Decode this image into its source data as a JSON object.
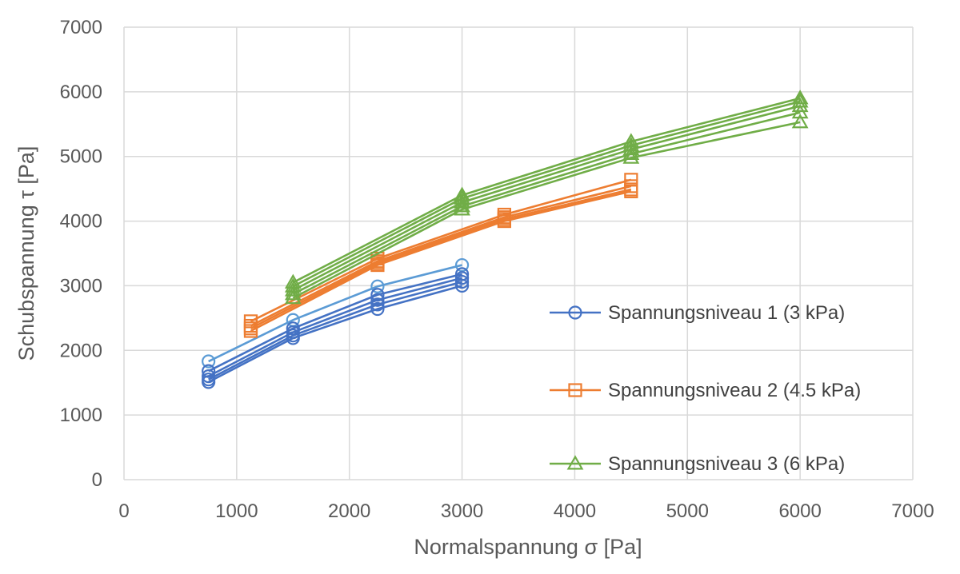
{
  "chart_data": {
    "type": "line",
    "xlabel": "Normalspannung σ [Pa]",
    "ylabel": "Schubspannung τ [Pa]",
    "xlim": [
      0,
      7000
    ],
    "ylim": [
      0,
      7000
    ],
    "x_ticks": [
      0,
      1000,
      2000,
      3000,
      4000,
      5000,
      6000,
      7000
    ],
    "y_ticks": [
      0,
      1000,
      2000,
      3000,
      4000,
      5000,
      6000,
      7000
    ],
    "grid": true,
    "legend_position": "right",
    "series": [
      {
        "group": "Spannungsniveau 1 (3 kPa)",
        "legend": "Spannungsniveau 1 (3 kPa)",
        "marker": "circle",
        "color": "#4472c4",
        "lines": [
          {
            "x": [
              750,
              1500,
              2250,
              3000
            ],
            "y": [
              1830,
              2470,
              2990,
              3320
            ],
            "color": "#5b9bd5"
          },
          {
            "x": [
              750,
              1500,
              2250,
              3000
            ],
            "y": [
              1680,
              2340,
              2860,
              3180
            ],
            "color": "#4472c4"
          },
          {
            "x": [
              750,
              1500,
              2250,
              3000
            ],
            "y": [
              1600,
              2280,
              2780,
              3120
            ],
            "color": "#4472c4"
          },
          {
            "x": [
              750,
              1500,
              2250,
              3000
            ],
            "y": [
              1550,
              2230,
              2710,
              3060
            ],
            "color": "#4472c4"
          },
          {
            "x": [
              750,
              1500,
              2250,
              3000
            ],
            "y": [
              1510,
              2190,
              2640,
              3000
            ],
            "color": "#4472c4"
          }
        ]
      },
      {
        "group": "Spannungsniveau 2 (4.5 kPa)",
        "legend": "Spannungsniveau 2 (4.5 kPa)",
        "marker": "square",
        "color": "#ed7d31",
        "lines": [
          {
            "x": [
              1125,
              2250,
              3375,
              4500
            ],
            "y": [
              2450,
              3420,
              4100,
              4640
            ],
            "color": "#ed7d31"
          },
          {
            "x": [
              1125,
              2250,
              3375,
              4500
            ],
            "y": [
              2380,
              3380,
              4060,
              4540
            ],
            "color": "#ed7d31"
          },
          {
            "x": [
              1125,
              2250,
              3375,
              4500
            ],
            "y": [
              2340,
              3350,
              4030,
              4490
            ],
            "color": "#ed7d31"
          },
          {
            "x": [
              1125,
              2250,
              3375,
              4500
            ],
            "y": [
              2300,
              3320,
              4000,
              4460
            ],
            "color": "#ed7d31"
          }
        ]
      },
      {
        "group": "Spannungsniveau 3 (6 kPa)",
        "legend": "Spannungsniveau 3 (6 kPa)",
        "marker": "triangle",
        "color": "#70ad47",
        "lines": [
          {
            "x": [
              1500,
              3000,
              4500,
              6000
            ],
            "y": [
              3050,
              4400,
              5230,
              5900
            ],
            "color": "#70ad47"
          },
          {
            "x": [
              1500,
              3000,
              4500,
              6000
            ],
            "y": [
              2990,
              4350,
              5170,
              5850
            ],
            "color": "#70ad47"
          },
          {
            "x": [
              1500,
              3000,
              4500,
              6000
            ],
            "y": [
              2930,
              4290,
              5110,
              5780
            ],
            "color": "#70ad47"
          },
          {
            "x": [
              1500,
              3000,
              4500,
              6000
            ],
            "y": [
              2870,
              4230,
              5040,
              5680
            ],
            "color": "#70ad47"
          },
          {
            "x": [
              1500,
              3000,
              4500,
              6000
            ],
            "y": [
              2810,
              4180,
              4980,
              5530
            ],
            "color": "#70ad47"
          }
        ]
      }
    ]
  }
}
